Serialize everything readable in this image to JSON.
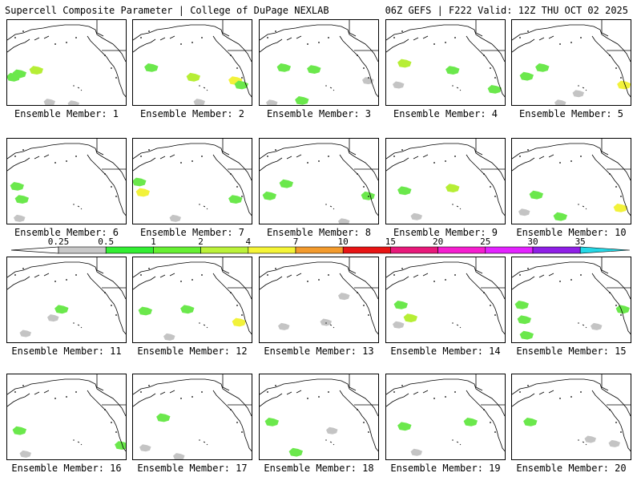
{
  "header": {
    "left": "Supercell Composite Parameter | College of DuPage NEXLAB",
    "right": "06Z GEFS | F222 Valid: 12Z THU OCT 02 2025"
  },
  "member_label_prefix": "Ensemble Member:",
  "members": [
    {
      "label": "Ensemble Member: 1",
      "blobs": [
        [
          0.1,
          0.62,
          "green"
        ],
        [
          0.05,
          0.66,
          "green"
        ],
        [
          0.24,
          0.58,
          "lime"
        ],
        [
          0.35,
          0.95,
          "gray"
        ],
        [
          0.55,
          0.97,
          "gray"
        ]
      ]
    },
    {
      "label": "Ensemble Member: 2",
      "blobs": [
        [
          0.15,
          0.55,
          "green"
        ],
        [
          0.5,
          0.66,
          "lime"
        ],
        [
          0.85,
          0.7,
          "yellow"
        ],
        [
          0.9,
          0.75,
          "green"
        ],
        [
          0.55,
          0.95,
          "gray"
        ]
      ]
    },
    {
      "label": "Ensemble Member: 3",
      "blobs": [
        [
          0.2,
          0.55,
          "green"
        ],
        [
          0.45,
          0.57,
          "green"
        ],
        [
          0.35,
          0.93,
          "green"
        ],
        [
          0.1,
          0.96,
          "gray"
        ],
        [
          0.9,
          0.7,
          "gray"
        ]
      ]
    },
    {
      "label": "Ensemble Member: 4",
      "blobs": [
        [
          0.15,
          0.5,
          "lime"
        ],
        [
          0.55,
          0.58,
          "green"
        ],
        [
          0.9,
          0.8,
          "green"
        ],
        [
          0.1,
          0.75,
          "gray"
        ]
      ]
    },
    {
      "label": "Ensemble Member: 5",
      "blobs": [
        [
          0.25,
          0.55,
          "green"
        ],
        [
          0.12,
          0.65,
          "green"
        ],
        [
          0.93,
          0.75,
          "yellow"
        ],
        [
          0.55,
          0.85,
          "gray"
        ],
        [
          0.4,
          0.96,
          "gray"
        ]
      ]
    },
    {
      "label": "Ensemble Member: 6",
      "blobs": [
        [
          0.08,
          0.55,
          "green"
        ],
        [
          0.12,
          0.7,
          "green"
        ],
        [
          0.1,
          0.92,
          "gray"
        ]
      ]
    },
    {
      "label": "Ensemble Member: 7",
      "blobs": [
        [
          0.08,
          0.62,
          "yellow"
        ],
        [
          0.05,
          0.5,
          "green"
        ],
        [
          0.85,
          0.7,
          "green"
        ],
        [
          0.35,
          0.92,
          "gray"
        ]
      ]
    },
    {
      "label": "Ensemble Member: 8",
      "blobs": [
        [
          0.22,
          0.52,
          "green"
        ],
        [
          0.08,
          0.66,
          "green"
        ],
        [
          0.9,
          0.66,
          "green"
        ],
        [
          0.7,
          0.96,
          "gray"
        ]
      ]
    },
    {
      "label": "Ensemble Member: 9",
      "blobs": [
        [
          0.15,
          0.6,
          "green"
        ],
        [
          0.55,
          0.57,
          "lime"
        ],
        [
          0.25,
          0.9,
          "gray"
        ]
      ]
    },
    {
      "label": "Ensemble Member: 10",
      "blobs": [
        [
          0.2,
          0.65,
          "green"
        ],
        [
          0.9,
          0.8,
          "yellow"
        ],
        [
          0.4,
          0.9,
          "green"
        ],
        [
          0.1,
          0.85,
          "gray"
        ]
      ]
    },
    {
      "label": "Ensemble Member: 11",
      "blobs": [
        [
          0.45,
          0.6,
          "green"
        ],
        [
          0.38,
          0.7,
          "gray"
        ],
        [
          0.15,
          0.88,
          "gray"
        ]
      ]
    },
    {
      "label": "Ensemble Member: 12",
      "blobs": [
        [
          0.1,
          0.62,
          "green"
        ],
        [
          0.45,
          0.6,
          "green"
        ],
        [
          0.88,
          0.75,
          "yellow"
        ],
        [
          0.3,
          0.92,
          "gray"
        ]
      ]
    },
    {
      "label": "Ensemble Member: 13",
      "blobs": [
        [
          0.7,
          0.45,
          "gray"
        ],
        [
          0.55,
          0.75,
          "gray"
        ],
        [
          0.2,
          0.8,
          "gray"
        ]
      ]
    },
    {
      "label": "Ensemble Member: 14",
      "blobs": [
        [
          0.12,
          0.55,
          "green"
        ],
        [
          0.2,
          0.7,
          "lime"
        ],
        [
          0.1,
          0.78,
          "gray"
        ]
      ]
    },
    {
      "label": "Ensemble Member: 15",
      "blobs": [
        [
          0.08,
          0.55,
          "green"
        ],
        [
          0.1,
          0.72,
          "green"
        ],
        [
          0.92,
          0.6,
          "green"
        ],
        [
          0.12,
          0.9,
          "green"
        ],
        [
          0.7,
          0.8,
          "gray"
        ]
      ]
    },
    {
      "label": "Ensemble Member: 16",
      "blobs": [
        [
          0.1,
          0.65,
          "green"
        ],
        [
          0.95,
          0.82,
          "green"
        ],
        [
          0.15,
          0.92,
          "gray"
        ]
      ]
    },
    {
      "label": "Ensemble Member: 17",
      "blobs": [
        [
          0.25,
          0.5,
          "green"
        ],
        [
          0.38,
          0.95,
          "gray"
        ],
        [
          0.1,
          0.85,
          "gray"
        ]
      ]
    },
    {
      "label": "Ensemble Member: 18",
      "blobs": [
        [
          0.1,
          0.55,
          "green"
        ],
        [
          0.3,
          0.9,
          "green"
        ],
        [
          0.6,
          0.65,
          "gray"
        ]
      ]
    },
    {
      "label": "Ensemble Member: 19",
      "blobs": [
        [
          0.7,
          0.55,
          "green"
        ],
        [
          0.15,
          0.6,
          "green"
        ],
        [
          0.25,
          0.9,
          "gray"
        ]
      ]
    },
    {
      "label": "Ensemble Member: 20",
      "blobs": [
        [
          0.15,
          0.55,
          "green"
        ],
        [
          0.65,
          0.75,
          "gray"
        ],
        [
          0.85,
          0.8,
          "gray"
        ]
      ]
    }
  ],
  "colorbar": {
    "tick_labels": [
      "0.25",
      "0.5",
      "1",
      "2",
      "4",
      "7",
      "10",
      "15",
      "20",
      "25",
      "30",
      "35"
    ],
    "colors": [
      "#c8c8c8",
      "#33ee33",
      "#66f033",
      "#bbf23a",
      "#f5f537",
      "#f39b2d",
      "#e81414",
      "#e8197a",
      "#f51ecf",
      "#e323ff",
      "#8f1fe6",
      "#9d5ed9",
      "#24d8e6"
    ]
  },
  "fill_colors": {
    "gray": "#c4c4c4",
    "green": "#6be84c",
    "lime": "#b6ee35",
    "yellow": "#f2f23a"
  },
  "map_colors": {
    "coast": "#000000",
    "border": "#000000"
  }
}
